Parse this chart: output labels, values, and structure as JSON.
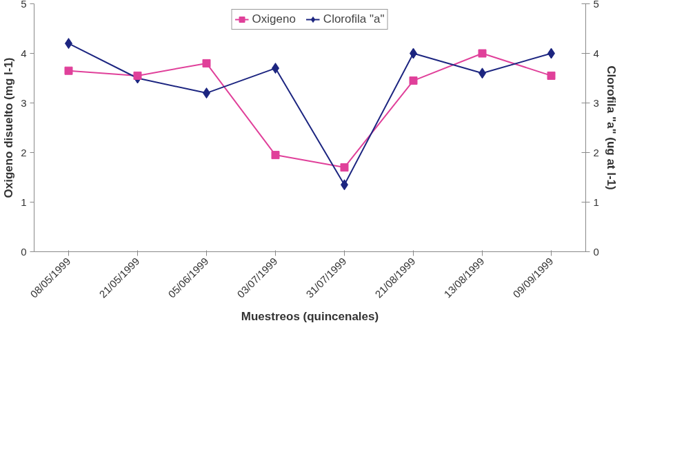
{
  "chart_data": {
    "type": "line",
    "xlabel": "Muestreos (quincenales)",
    "ylabel": "Oxigeno disuelto (mg l-1)",
    "y2label": "Clorofila \"a\" (ug at l-1)",
    "categories": [
      "08/05/1999",
      "21/05/1999",
      "05/06/1999",
      "03/07/1999",
      "31/07/1999",
      "21/08/1999",
      "13/08/1999",
      "09/09/1999"
    ],
    "series": [
      {
        "name": "Oxigeno",
        "color": "#e0409a",
        "marker": "square",
        "values": [
          3.65,
          3.55,
          3.8,
          1.95,
          1.7,
          3.45,
          4.0,
          3.55
        ]
      },
      {
        "name": "Clorofila \"a\"",
        "color": "#1c2580",
        "marker": "diamond",
        "axis": "y2",
        "values": [
          4.2,
          3.5,
          3.2,
          3.7,
          1.35,
          4.0,
          3.6,
          4.0
        ]
      }
    ],
    "ylim": [
      0,
      5
    ],
    "yticks": [
      0,
      1,
      2,
      3,
      4,
      5
    ],
    "y2lim": [
      0,
      5
    ],
    "y2ticks": [
      0,
      1,
      2,
      3,
      4,
      5
    ],
    "grid": false,
    "legend": "top",
    "line_style": "solid"
  }
}
